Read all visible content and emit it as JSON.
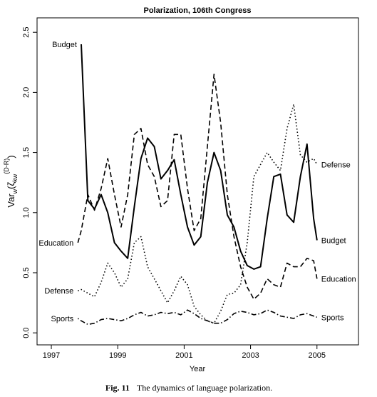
{
  "chart_data": {
    "type": "line",
    "title": "Polarization, 106th Congress",
    "ylabel_parts": [
      "Var",
      "w",
      "(ζ",
      "kw",
      "(D-R)",
      ")"
    ],
    "xlabel": "Year",
    "x": [
      1997.8,
      1997.9,
      1998.1,
      1998.3,
      1998.5,
      1998.7,
      1998.9,
      1999.1,
      1999.3,
      1999.5,
      1999.7,
      1999.9,
      2000.1,
      2000.3,
      2000.5,
      2000.7,
      2000.9,
      2001.1,
      2001.3,
      2001.5,
      2001.7,
      2001.9,
      2002.1,
      2002.3,
      2002.5,
      2002.7,
      2002.9,
      2003.1,
      2003.3,
      2003.5,
      2003.7,
      2003.9,
      2004.1,
      2004.3,
      2004.5,
      2004.7,
      2004.9,
      2005.0
    ],
    "series": [
      {
        "name": "Budget",
        "color": "#000000",
        "dash": "solid",
        "values": [
          null,
          2.4,
          1.1,
          1.03,
          1.15,
          1.0,
          0.75,
          0.68,
          0.62,
          1.05,
          1.45,
          1.62,
          1.55,
          1.28,
          1.35,
          1.44,
          1.15,
          0.88,
          0.73,
          0.8,
          1.25,
          1.5,
          1.35,
          0.98,
          0.88,
          0.68,
          0.56,
          0.53,
          0.55,
          0.95,
          1.3,
          1.32,
          0.98,
          0.92,
          1.3,
          1.57,
          0.95,
          0.77
        ]
      },
      {
        "name": "Defense",
        "color": "#000000",
        "dash": "dotted",
        "values": [
          0.35,
          0.36,
          0.33,
          0.3,
          0.42,
          0.58,
          0.5,
          0.38,
          0.45,
          0.75,
          0.8,
          0.55,
          0.45,
          0.35,
          0.25,
          0.35,
          0.47,
          0.4,
          0.22,
          0.15,
          0.1,
          0.08,
          0.18,
          0.32,
          0.33,
          0.4,
          0.75,
          1.3,
          1.4,
          1.5,
          1.42,
          1.35,
          1.7,
          1.9,
          1.48,
          1.42,
          1.45,
          1.4
        ]
      },
      {
        "name": "Education",
        "color": "#000000",
        "dash": "dashed",
        "values": [
          0.75,
          0.85,
          1.15,
          1.02,
          1.2,
          1.45,
          1.15,
          0.88,
          1.15,
          1.65,
          1.7,
          1.4,
          1.3,
          1.05,
          1.1,
          1.65,
          1.65,
          1.2,
          0.85,
          0.95,
          1.55,
          2.15,
          1.75,
          1.15,
          0.8,
          0.55,
          0.38,
          0.28,
          0.33,
          0.45,
          0.4,
          0.38,
          0.58,
          0.55,
          0.55,
          0.62,
          0.6,
          0.45
        ]
      },
      {
        "name": "Sports",
        "color": "#000000",
        "dash": "dotdash",
        "values": [
          0.12,
          0.1,
          0.07,
          0.08,
          0.11,
          0.12,
          0.11,
          0.1,
          0.12,
          0.15,
          0.17,
          0.14,
          0.15,
          0.17,
          0.16,
          0.17,
          0.15,
          0.19,
          0.16,
          0.12,
          0.1,
          0.08,
          0.08,
          0.11,
          0.16,
          0.18,
          0.17,
          0.15,
          0.16,
          0.19,
          0.17,
          0.14,
          0.13,
          0.12,
          0.15,
          0.16,
          0.14,
          0.13
        ]
      }
    ],
    "xlim": [
      1996.57,
      2006.25
    ],
    "xticks": [
      1997,
      1999,
      2001,
      2003,
      2005
    ],
    "ylim": [
      -0.1,
      2.62
    ],
    "yticks": [
      {
        "value": 0,
        "label": "0.0"
      },
      0.5,
      {
        "value": 1,
        "label": "1.0"
      },
      1.5,
      {
        "value": 2,
        "label": "2.0"
      },
      2.5
    ],
    "grid": false,
    "legend": "direct"
  },
  "caption": {
    "label": "Fig. 11",
    "text": "The dynamics of language polarization."
  }
}
